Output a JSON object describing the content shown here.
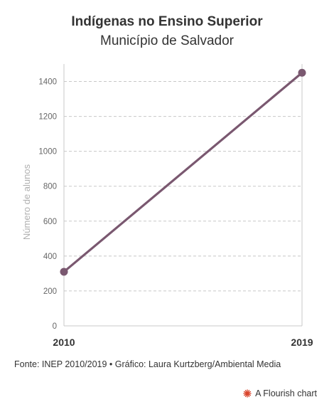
{
  "header": {
    "title": "Indígenas no Ensino Superior",
    "subtitle": "Município de Salvador"
  },
  "footer": {
    "source": "Fonte: INEP 2010/2019 • Gráfico: Laura Kurtzberg/Ambiental Media",
    "brand": "A Flourish chart"
  },
  "colors": {
    "line": "#7a5870",
    "grid": "#c8c8c8",
    "axis_text": "#666666",
    "ylabel_text": "#b0b0b0",
    "brand_icon": "#d9452c"
  },
  "chart_data": {
    "type": "line",
    "title": "Indígenas no Ensino Superior",
    "subtitle": "Município de Salvador",
    "xlabel": "",
    "ylabel": "Número de alunos",
    "x": [
      "2010",
      "2019"
    ],
    "series": [
      {
        "values": [
          310,
          1450
        ]
      }
    ],
    "ylim": [
      0,
      1500
    ],
    "yticks": [
      0,
      200,
      400,
      600,
      800,
      1000,
      1200,
      1400
    ],
    "grid": true,
    "grid_style": "dashed horizontal"
  }
}
